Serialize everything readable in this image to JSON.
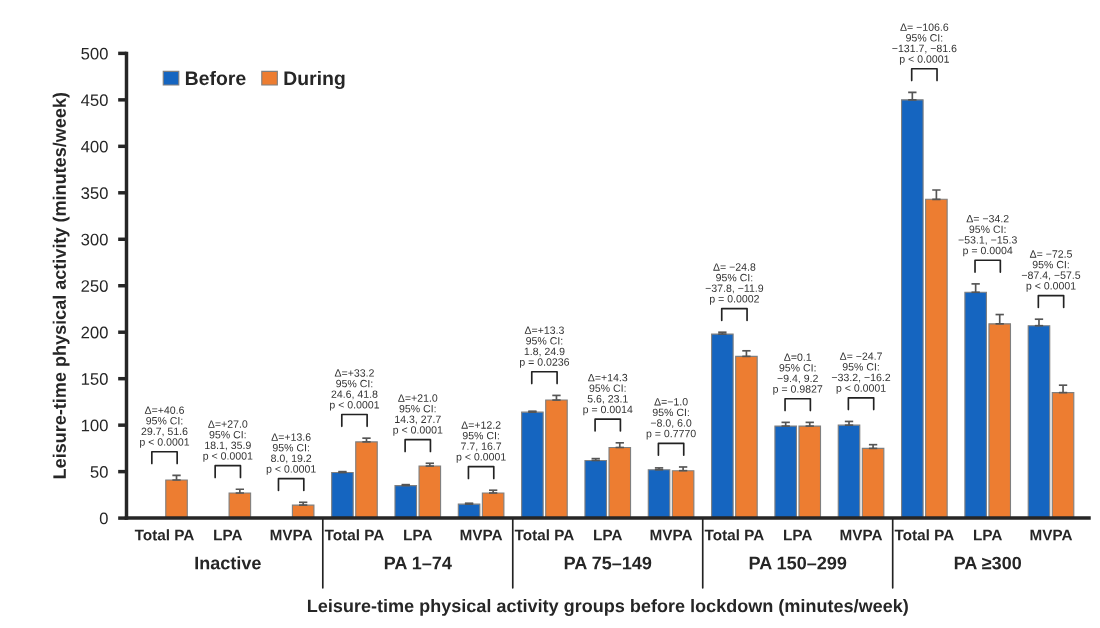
{
  "chart_data": {
    "type": "bar",
    "xlabel": "Leisure-time physical activity groups before lockdown (minutes/week)",
    "ylabel": "Leisure-time physical activity (minutes/week)",
    "categories": [
      "Total PA",
      "LPA",
      "MVPA",
      "Total PA",
      "LPA",
      "MVPA",
      "Total PA",
      "LPA",
      "MVPA",
      "Total PA",
      "LPA",
      "MVPA",
      "Total PA",
      "LPA",
      "MVPA"
    ],
    "series": [
      {
        "name": "Before",
        "color": "#1565c0",
        "values": [
          null,
          null,
          null,
          49,
          35,
          15,
          114,
          62,
          52,
          198,
          99,
          100,
          450,
          243,
          207
        ],
        "errors": [
          null,
          null,
          null,
          1,
          1,
          1,
          1,
          2,
          2,
          2,
          4,
          4,
          8,
          9,
          7
        ]
      },
      {
        "name": "During",
        "color": "#ed7d31",
        "values": [
          41,
          27,
          14,
          82,
          56,
          27,
          127,
          76,
          51,
          174,
          99,
          75,
          343,
          209,
          135
        ],
        "errors": [
          5,
          4,
          3,
          4,
          3,
          3,
          5,
          5,
          4,
          6,
          4,
          4,
          10,
          10,
          8
        ]
      }
    ],
    "ylim": [
      0,
      500
    ],
    "yticks": [
      0,
      50,
      100,
      150,
      200,
      250,
      300,
      350,
      400,
      450,
      500
    ],
    "legend": "top left",
    "grid": false,
    "annotations": [
      "Δ=+40.6\n95% CI:\n29.7, 51.6\np < 0.0001",
      "Δ=+27.0\n95% CI:\n18.1, 35.9\np < 0.0001",
      "Δ=+13.6\n95% CI:\n8.0, 19.2\np < 0.0001",
      "Δ=+33.2\n95% CI:\n24.6, 41.8\np < 0.0001",
      "Δ=+21.0\n95% CI:\n14.3, 27.7\np < 0.0001",
      "Δ=+12.2\n95% CI:\n7.7, 16.7\np < 0.0001",
      "Δ=+13.3\n95% CI:\n1.8, 24.9\np = 0.0236",
      "Δ=+14.3\n95% CI:\n5.6, 23.1\np = 0.0014",
      "Δ=−1.0\n95% CI:\n−8.0, 6.0\np = 0.7770",
      "Δ= −24.8\n95% CI:\n−37.8, −11.9\np = 0.0002",
      "Δ=0.1\n95% CI:\n−9.4, 9.2\np = 0.9827",
      "Δ= −24.7\n95% CI:\n−33.2, −16.2\np < 0.0001",
      "Δ= −106.6\n95% CI:\n−131.7, −81.6\np < 0.0001",
      "Δ= −34.2\n95% CI:\n−53.1, −15.3\np = 0.0004",
      "Δ= −72.5\n95% CI:\n−87.4, −57.5\np < 0.0001",
      "Inactive",
      "PA 1–74",
      "PA 75–149",
      "PA 150–299",
      "PA ≥300"
    ]
  }
}
